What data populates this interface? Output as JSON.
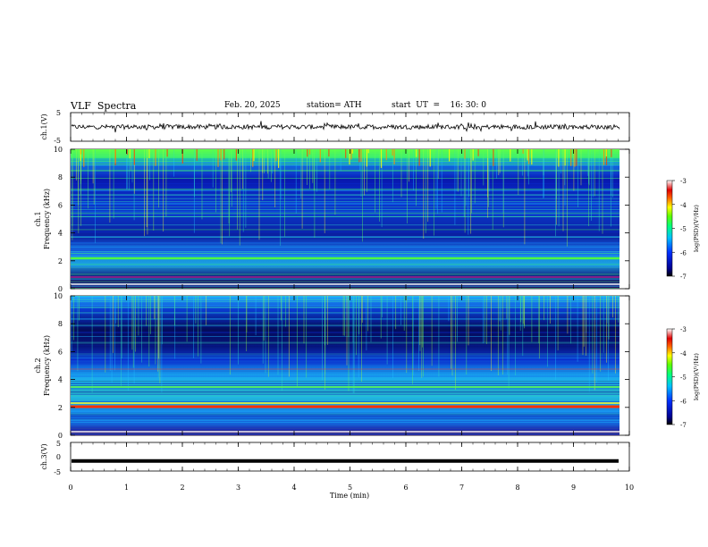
{
  "header": {
    "title": "VLF  Spectra",
    "date": "Feb. 20, 2025",
    "station": "station= ATH",
    "start_ut": "start  UT  =    16: 30: 0"
  },
  "chart_data": [
    {
      "type": "line",
      "name": "ch1-waveform",
      "ylabel": "ch.1(V)",
      "ylim": [
        -5,
        5
      ],
      "yticks": [
        "5",
        "-5"
      ],
      "x_range_min": [
        0,
        9.8
      ],
      "description_values": {
        "mean_level": 0,
        "amplitude_approx": 1.5
      }
    },
    {
      "type": "heatmap",
      "name": "ch1-spectrogram",
      "ylabel": "ch.1\nFrequency  (kHz)",
      "ylim": [
        0,
        10
      ],
      "yticks": [
        "0",
        "2",
        "4",
        "6",
        "8",
        "10"
      ],
      "xlim": [
        0,
        10
      ],
      "colorbar": {
        "label": "log(PSD)(V²/Hz)",
        "range": [
          -7,
          -3
        ],
        "ticks": [
          "-3",
          "-4",
          "-5",
          "-6",
          "-7"
        ]
      }
    },
    {
      "type": "heatmap",
      "name": "ch2-spectrogram",
      "ylabel": "ch.2\nFrequency  (kHz)",
      "ylim": [
        0,
        10
      ],
      "yticks": [
        "0",
        "2",
        "4",
        "6",
        "8",
        "10"
      ],
      "xlim": [
        0,
        10
      ],
      "colorbar": {
        "label": "log(PSD)(V²/Hz)",
        "range": [
          -7,
          -3
        ],
        "ticks": [
          "-3",
          "-4",
          "-5",
          "-6",
          "-7"
        ]
      }
    },
    {
      "type": "line",
      "name": "ch3-waveform",
      "ylabel": "ch.3(V)",
      "ylim": [
        -5,
        5
      ],
      "yticks": [
        "5",
        "0",
        "-5"
      ],
      "constant_value": -1.5
    }
  ],
  "xaxis": {
    "label": "Time  (min)",
    "ticks": [
      "0",
      "1",
      "2",
      "3",
      "4",
      "5",
      "6",
      "7",
      "8",
      "9",
      "10"
    ]
  }
}
